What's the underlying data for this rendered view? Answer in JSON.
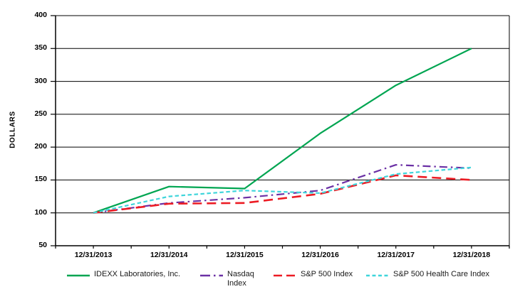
{
  "chart_data": {
    "type": "line",
    "title": "",
    "xlabel": "",
    "ylabel": "DOLLARS",
    "ylim": [
      50,
      400
    ],
    "yticks": [
      400,
      350,
      300,
      250,
      200,
      150,
      100,
      50
    ],
    "grid": true,
    "legend_position": "bottom",
    "categories": [
      "12/31/2013",
      "12/31/2014",
      "12/31/2015",
      "12/31/2016",
      "12/31/2017",
      "12/31/2018"
    ],
    "series": [
      {
        "name": "IDEXX Laboratories, Inc.",
        "color": "#00A551",
        "line_style": "solid",
        "values": [
          100,
          140,
          137,
          221,
          294,
          350
        ]
      },
      {
        "name": "Nasdaq Index",
        "color": "#6B30A5",
        "line_style": "dash-dot",
        "values": [
          100,
          115,
          123,
          134,
          173,
          168
        ]
      },
      {
        "name": "S&P 500 Index",
        "color": "#EC1C24",
        "line_style": "long-dash",
        "values": [
          100,
          114,
          115,
          129,
          157,
          150
        ]
      },
      {
        "name": "S&P 500 Health Care Index",
        "color": "#3FD5DB",
        "line_style": "short-dash",
        "values": [
          100,
          125,
          134,
          130,
          159,
          169
        ]
      }
    ],
    "axis_color": "#000000",
    "background_color": "#ffffff"
  }
}
